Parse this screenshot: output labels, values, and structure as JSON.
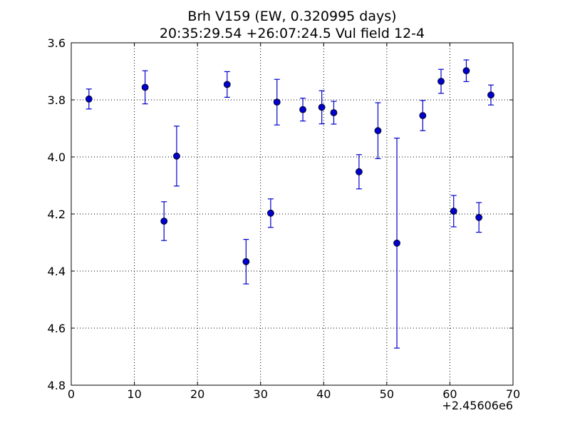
{
  "chart_data": {
    "type": "scatter",
    "title_line1": "Brh V159 (EW, 0.320995 days)",
    "title_line2": "20:35:29.54 +26:07:24.5 Vul field 12-4",
    "xlabel": "",
    "ylabel": "",
    "xlim": [
      0,
      70
    ],
    "ylim": [
      4.8,
      3.6
    ],
    "y_inverted": true,
    "x_offset_label": "+2.45606e6",
    "x_ticks": [
      0,
      10,
      20,
      30,
      40,
      50,
      60,
      70
    ],
    "x_tick_labels": [
      "0",
      "10",
      "20",
      "30",
      "40",
      "50",
      "60",
      "70"
    ],
    "y_ticks": [
      3.6,
      3.8,
      4.0,
      4.2,
      4.4,
      4.6,
      4.8
    ],
    "y_tick_labels": [
      "3.6",
      "3.8",
      "4.0",
      "4.2",
      "4.4",
      "4.6",
      "4.8"
    ],
    "grid": true,
    "color": "#0000cc",
    "points": [
      {
        "x": 2.8,
        "y": 3.797,
        "err": 0.035
      },
      {
        "x": 11.7,
        "y": 3.756,
        "err": 0.058
      },
      {
        "x": 14.7,
        "y": 4.225,
        "err": 0.068
      },
      {
        "x": 16.7,
        "y": 3.997,
        "err": 0.105
      },
      {
        "x": 24.7,
        "y": 3.746,
        "err": 0.045
      },
      {
        "x": 27.7,
        "y": 4.367,
        "err": 0.078
      },
      {
        "x": 31.6,
        "y": 4.197,
        "err": 0.05
      },
      {
        "x": 32.6,
        "y": 3.808,
        "err": 0.08
      },
      {
        "x": 36.7,
        "y": 3.834,
        "err": 0.04
      },
      {
        "x": 39.7,
        "y": 3.826,
        "err": 0.058
      },
      {
        "x": 41.6,
        "y": 3.845,
        "err": 0.04
      },
      {
        "x": 45.6,
        "y": 4.052,
        "err": 0.06
      },
      {
        "x": 48.6,
        "y": 3.908,
        "err": 0.098
      },
      {
        "x": 51.6,
        "y": 4.302,
        "err": 0.368
      },
      {
        "x": 55.7,
        "y": 3.855,
        "err": 0.053
      },
      {
        "x": 58.6,
        "y": 3.735,
        "err": 0.042
      },
      {
        "x": 60.6,
        "y": 4.19,
        "err": 0.055
      },
      {
        "x": 62.6,
        "y": 3.698,
        "err": 0.038
      },
      {
        "x": 64.6,
        "y": 4.212,
        "err": 0.052
      },
      {
        "x": 66.5,
        "y": 3.783,
        "err": 0.035
      }
    ]
  }
}
